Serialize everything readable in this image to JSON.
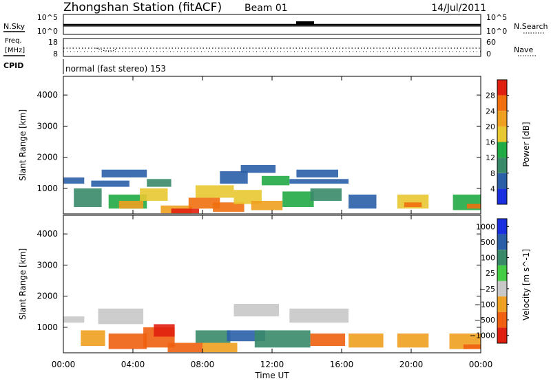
{
  "header": {
    "station": "Zhongshan Station (fitACF)",
    "beam": "Beam 01",
    "date": "14/Jul/2011"
  },
  "noise_panel": {
    "left_label": "N.Sky",
    "left_ticks": [
      "10^5",
      "10^0"
    ],
    "right_ticks": [
      "10^5",
      "10^0"
    ],
    "right_label": "N.Search",
    "right_label_style": "dotted"
  },
  "freq_panel": {
    "left_label_top": "Freq.",
    "left_label_unit": "[MHz]",
    "left_ticks": [
      "18",
      "8"
    ],
    "right_ticks": [
      "60",
      "0"
    ],
    "right_label": "Nave",
    "right_label_style": "dotted"
  },
  "cpid_panel": {
    "label": "CPID",
    "text": "normal (fast stereo) 153"
  },
  "chart_data": [
    {
      "type": "heatmap",
      "title": "",
      "xlabel": "",
      "ylabel": "Slant Range [km]",
      "ylim": [
        180,
        4600
      ],
      "xlim": [
        0,
        24
      ],
      "y_tick_labels": [
        "1000",
        "2000",
        "3000",
        "4000"
      ],
      "y_ticks": [
        1000,
        2000,
        3000,
        4000
      ],
      "colorbar": {
        "label": "Power [dB]",
        "range": [
          0,
          32
        ],
        "tick_labels": [
          "4",
          "8",
          "12",
          "16",
          "20",
          "24",
          "28"
        ],
        "colors": [
          "#1a2fe0",
          "#2b5fa8",
          "#3a8a6a",
          "#22aa44",
          "#e8c830",
          "#f0a020",
          "#f07010",
          "#e02010"
        ]
      },
      "cells": [
        {
          "t0": 0.0,
          "t1": 1.2,
          "r0": 1150,
          "r1": 1350,
          "v": 6
        },
        {
          "t0": 0.6,
          "t1": 2.2,
          "r0": 400,
          "r1": 1000,
          "v": 10
        },
        {
          "t0": 1.6,
          "t1": 3.8,
          "r0": 1050,
          "r1": 1250,
          "v": 7
        },
        {
          "t0": 2.2,
          "t1": 4.8,
          "r0": 1350,
          "r1": 1600,
          "v": 7
        },
        {
          "t0": 2.6,
          "t1": 4.8,
          "r0": 350,
          "r1": 800,
          "v": 14
        },
        {
          "t0": 3.2,
          "t1": 4.6,
          "r0": 350,
          "r1": 600,
          "v": 21
        },
        {
          "t0": 4.4,
          "t1": 6.0,
          "r0": 600,
          "r1": 1000,
          "v": 18
        },
        {
          "t0": 4.8,
          "t1": 6.2,
          "r0": 1050,
          "r1": 1300,
          "v": 8
        },
        {
          "t0": 5.6,
          "t1": 7.4,
          "r0": 200,
          "r1": 450,
          "v": 22
        },
        {
          "t0": 6.2,
          "t1": 7.8,
          "r0": 200,
          "r1": 350,
          "v": 29
        },
        {
          "t0": 7.2,
          "t1": 9.0,
          "r0": 350,
          "r1": 700,
          "v": 26
        },
        {
          "t0": 7.6,
          "t1": 9.8,
          "r0": 700,
          "r1": 1100,
          "v": 17
        },
        {
          "t0": 8.6,
          "t1": 10.4,
          "r0": 250,
          "r1": 550,
          "v": 25
        },
        {
          "t0": 9.0,
          "t1": 10.6,
          "r0": 1150,
          "r1": 1550,
          "v": 7
        },
        {
          "t0": 9.8,
          "t1": 11.4,
          "r0": 500,
          "r1": 950,
          "v": 19
        },
        {
          "t0": 10.2,
          "t1": 12.2,
          "r0": 1500,
          "r1": 1750,
          "v": 7
        },
        {
          "t0": 10.8,
          "t1": 12.6,
          "r0": 300,
          "r1": 600,
          "v": 22
        },
        {
          "t0": 11.4,
          "t1": 13.0,
          "r0": 1100,
          "r1": 1400,
          "v": 12
        },
        {
          "t0": 12.6,
          "t1": 14.4,
          "r0": 400,
          "r1": 900,
          "v": 14
        },
        {
          "t0": 13.0,
          "t1": 16.4,
          "r0": 1150,
          "r1": 1300,
          "v": 5
        },
        {
          "t0": 13.4,
          "t1": 15.8,
          "r0": 1350,
          "r1": 1600,
          "v": 6
        },
        {
          "t0": 14.2,
          "t1": 16.0,
          "r0": 600,
          "r1": 1000,
          "v": 10
        },
        {
          "t0": 16.4,
          "t1": 18.0,
          "r0": 350,
          "r1": 800,
          "v": 7
        },
        {
          "t0": 19.2,
          "t1": 21.0,
          "r0": 350,
          "r1": 800,
          "v": 16
        },
        {
          "t0": 19.6,
          "t1": 20.6,
          "r0": 400,
          "r1": 550,
          "v": 25
        },
        {
          "t0": 22.4,
          "t1": 24.0,
          "r0": 300,
          "r1": 800,
          "v": 15
        },
        {
          "t0": 23.2,
          "t1": 24.0,
          "r0": 350,
          "r1": 500,
          "v": 26
        }
      ]
    },
    {
      "type": "heatmap",
      "title": "",
      "xlabel": "Time UT",
      "ylabel": "Slant Range [km]",
      "ylim": [
        180,
        4600
      ],
      "xlim": [
        0,
        24
      ],
      "x_tick_labels": [
        "00:00",
        "04:00",
        "08:00",
        "12:00",
        "16:00",
        "20:00",
        "00:00"
      ],
      "x_ticks": [
        0,
        4,
        8,
        12,
        16,
        20,
        24
      ],
      "y_tick_labels": [
        "1000",
        "2000",
        "3000",
        "4000"
      ],
      "y_ticks": [
        1000,
        2000,
        3000,
        4000
      ],
      "colorbar": {
        "label": "Velocity [m s^-1]",
        "tick_labels": [
          "1000",
          "500",
          "100",
          "25",
          "−25",
          "−100",
          "−500",
          "−1000"
        ],
        "colors": [
          "#1a2fe0",
          "#2b5fa8",
          "#3a8a6a",
          "#44cc44",
          "#c8c8c8",
          "#f0a020",
          "#f06010",
          "#e02010"
        ]
      },
      "cells": [
        {
          "t0": 0.0,
          "t1": 1.2,
          "r0": 1150,
          "r1": 1350,
          "v": 4
        },
        {
          "t0": 1.0,
          "t1": 2.4,
          "r0": 400,
          "r1": 900,
          "v": 5
        },
        {
          "t0": 2.0,
          "t1": 4.6,
          "r0": 1100,
          "r1": 1600,
          "v": 4
        },
        {
          "t0": 2.6,
          "t1": 4.8,
          "r0": 300,
          "r1": 800,
          "v": 6
        },
        {
          "t0": 4.6,
          "t1": 6.4,
          "r0": 350,
          "r1": 1000,
          "v": 6
        },
        {
          "t0": 5.2,
          "t1": 6.4,
          "r0": 700,
          "r1": 1100,
          "v": 7
        },
        {
          "t0": 6.0,
          "t1": 8.0,
          "r0": 200,
          "r1": 500,
          "v": 6
        },
        {
          "t0": 7.6,
          "t1": 9.6,
          "r0": 500,
          "r1": 900,
          "v": 2
        },
        {
          "t0": 8.0,
          "t1": 10.0,
          "r0": 200,
          "r1": 500,
          "v": 5
        },
        {
          "t0": 9.4,
          "t1": 11.6,
          "r0": 550,
          "r1": 900,
          "v": 1
        },
        {
          "t0": 9.8,
          "t1": 12.4,
          "r0": 1350,
          "r1": 1750,
          "v": 4
        },
        {
          "t0": 11.0,
          "t1": 14.2,
          "r0": 350,
          "r1": 900,
          "v": 2
        },
        {
          "t0": 13.0,
          "t1": 16.4,
          "r0": 1150,
          "r1": 1600,
          "v": 4
        },
        {
          "t0": 14.2,
          "t1": 16.2,
          "r0": 400,
          "r1": 800,
          "v": 6
        },
        {
          "t0": 16.4,
          "t1": 18.4,
          "r0": 350,
          "r1": 800,
          "v": 5
        },
        {
          "t0": 19.2,
          "t1": 21.0,
          "r0": 350,
          "r1": 800,
          "v": 5
        },
        {
          "t0": 22.2,
          "t1": 24.0,
          "r0": 300,
          "r1": 800,
          "v": 5
        },
        {
          "t0": 23.0,
          "t1": 24.0,
          "r0": 300,
          "r1": 450,
          "v": 6
        }
      ]
    }
  ]
}
